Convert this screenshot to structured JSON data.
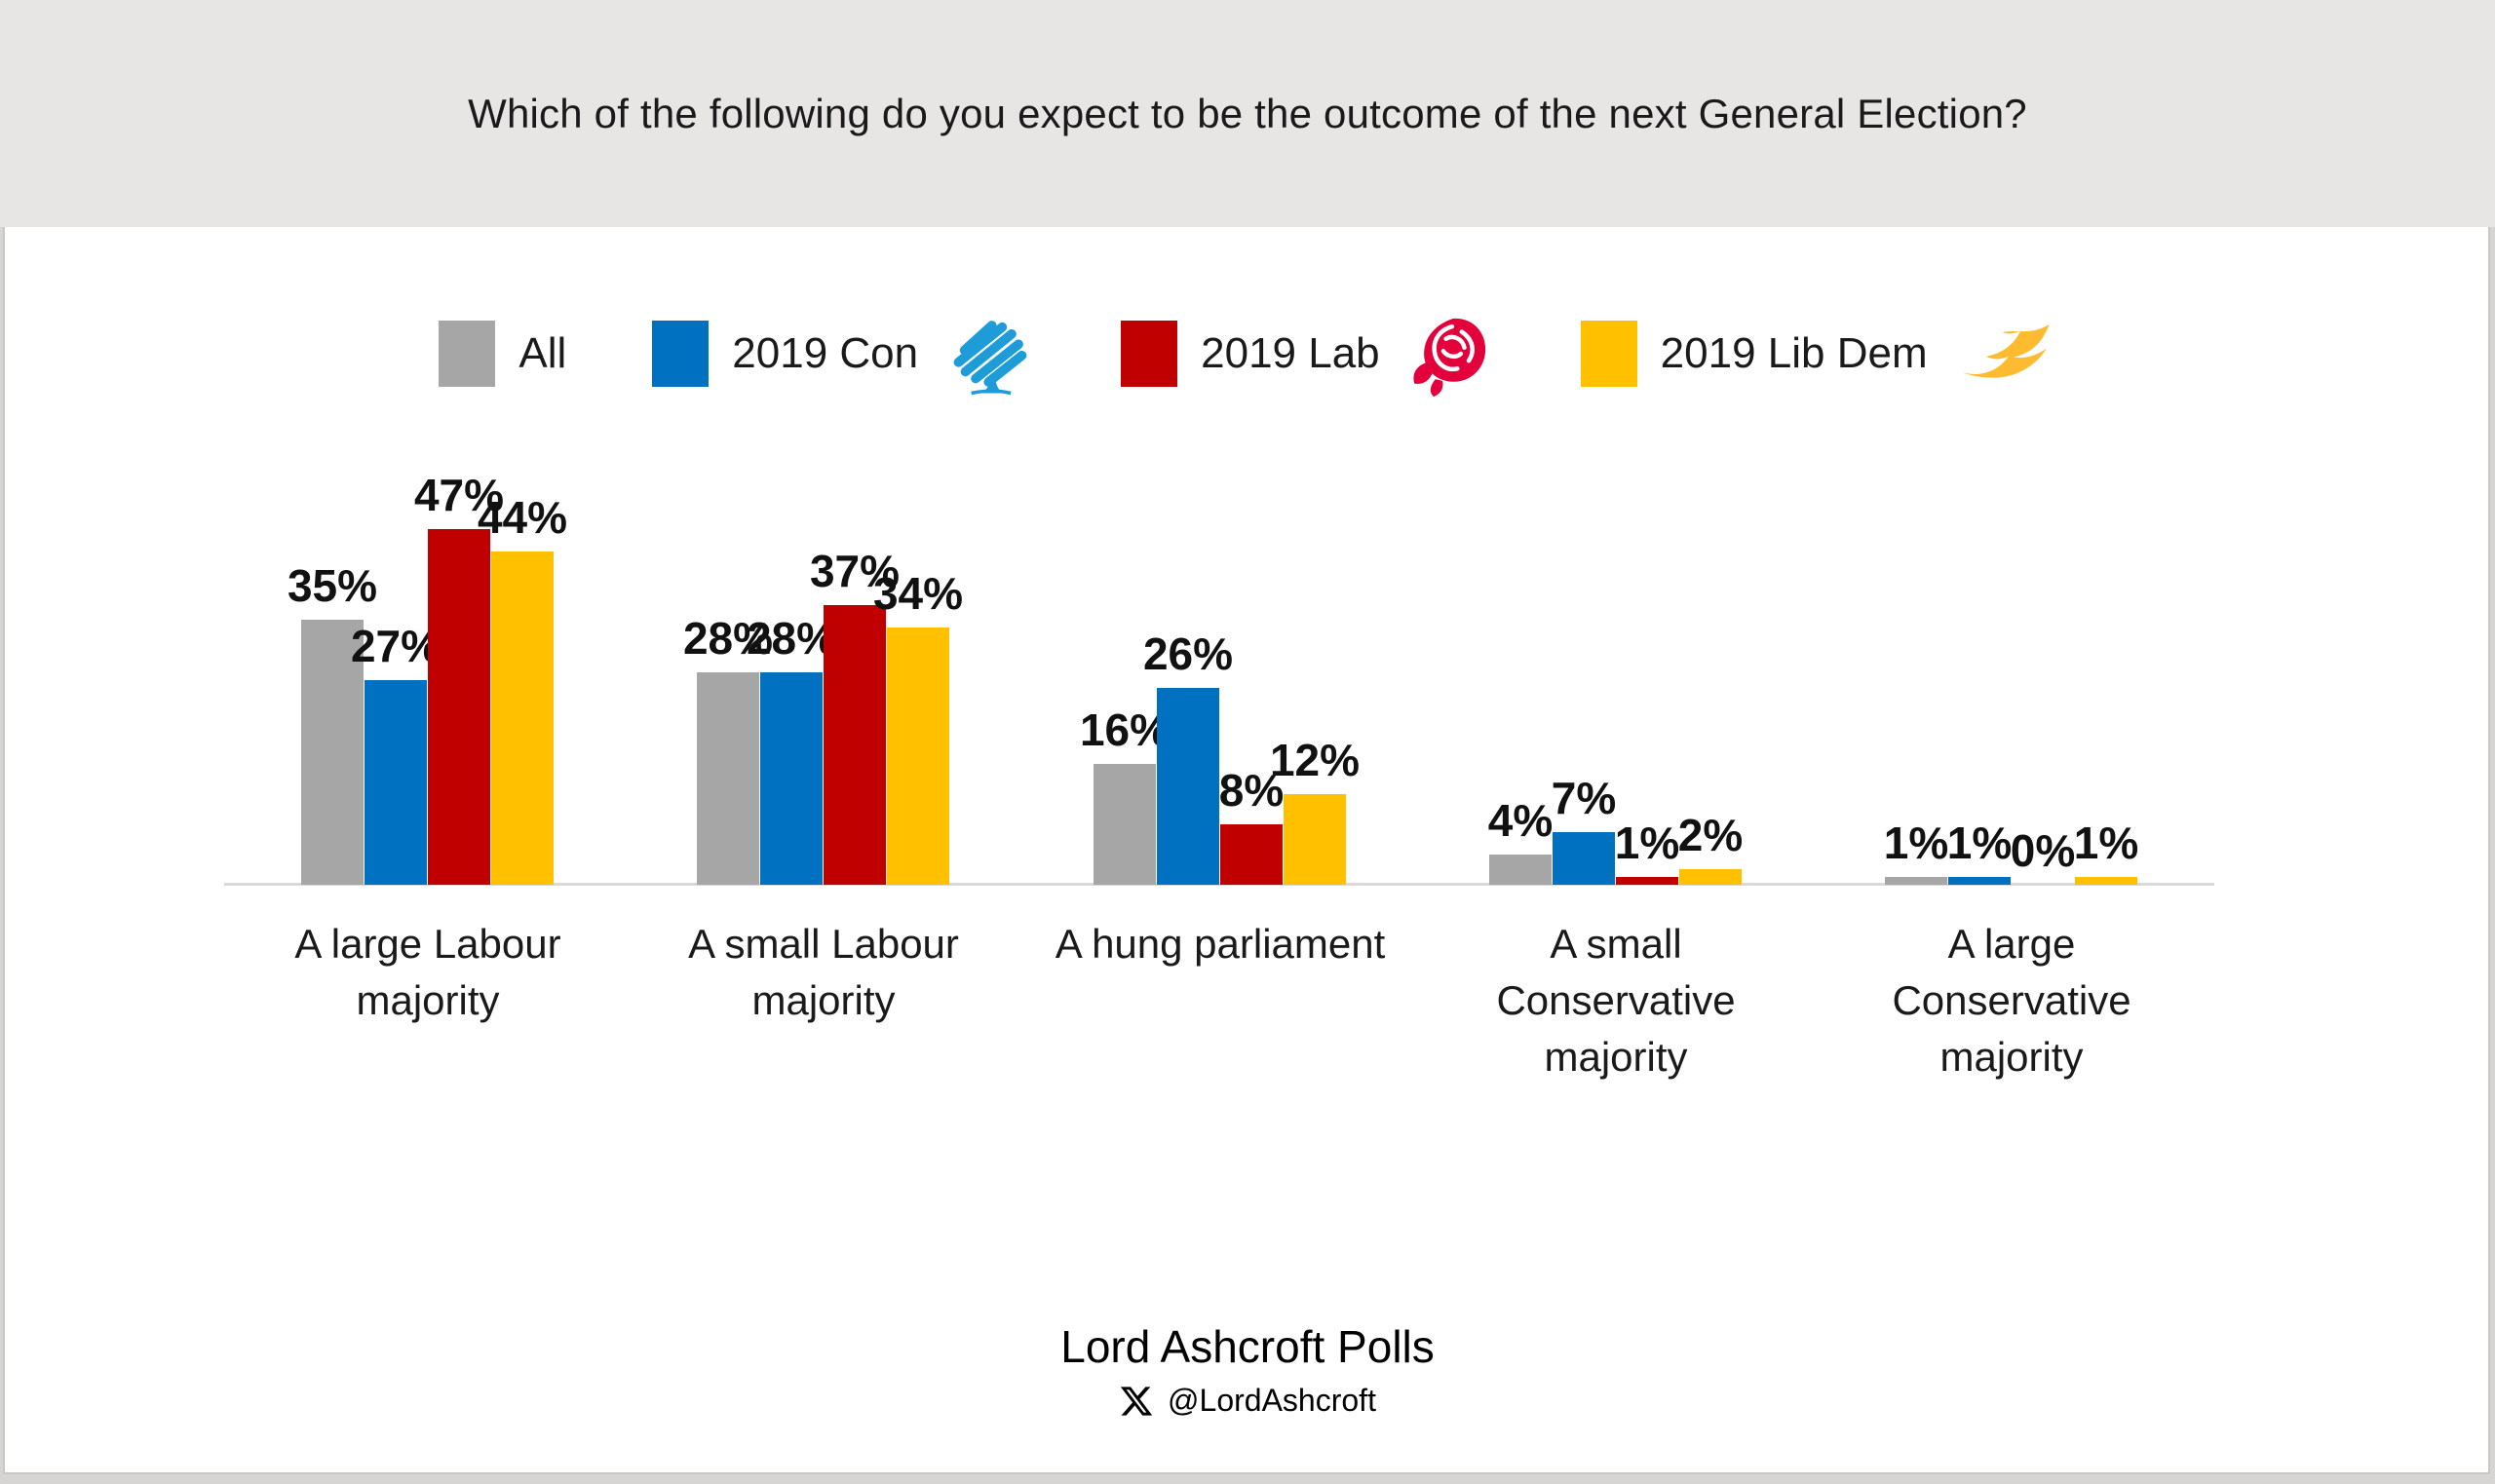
{
  "title": "Which of the following do you expect to be the outcome of the next General Election?",
  "legend": [
    {
      "label": "All",
      "color": "#A6A6A6",
      "logo": null,
      "logo_color": null
    },
    {
      "label": "2019 Con",
      "color": "#0070C0",
      "logo": "conservative-tree",
      "logo_color": "#1E9CD7"
    },
    {
      "label": "2019 Lab",
      "color": "#C00000",
      "logo": "labour-rose",
      "logo_color": "#E4003B"
    },
    {
      "label": "2019 Lib Dem",
      "color": "#FFC000",
      "logo": "libdem-bird",
      "logo_color": "#FDBB30"
    }
  ],
  "chart_data": {
    "type": "bar",
    "title": "Which of the following do you expect to be the outcome of the next General Election?",
    "categories": [
      "A large Labour\nmajority",
      "A small Labour\nmajority",
      "A hung parliament",
      "A small\nConservative\nmajority",
      "A large\nConservative\nmajority"
    ],
    "series": [
      {
        "name": "All",
        "color": "#A6A6A6",
        "values": [
          35,
          28,
          16,
          4,
          1
        ]
      },
      {
        "name": "2019 Con",
        "color": "#0070C0",
        "values": [
          27,
          28,
          26,
          7,
          1
        ]
      },
      {
        "name": "2019 Lab",
        "color": "#C00000",
        "values": [
          47,
          37,
          8,
          1,
          0
        ]
      },
      {
        "name": "2019 Lib Dem",
        "color": "#FFC000",
        "values": [
          44,
          34,
          12,
          2,
          1
        ]
      }
    ],
    "value_suffix": "%",
    "data_labels": true,
    "xlabel": "",
    "ylabel": "",
    "ylim": [
      0,
      50
    ],
    "grid": false,
    "y_axis_visible": false,
    "legend_position": "top",
    "axis_line_color": "#D9D9D9"
  },
  "footer": {
    "source": "Lord Ashcroft Polls",
    "handle": "@LordAshcroft"
  }
}
